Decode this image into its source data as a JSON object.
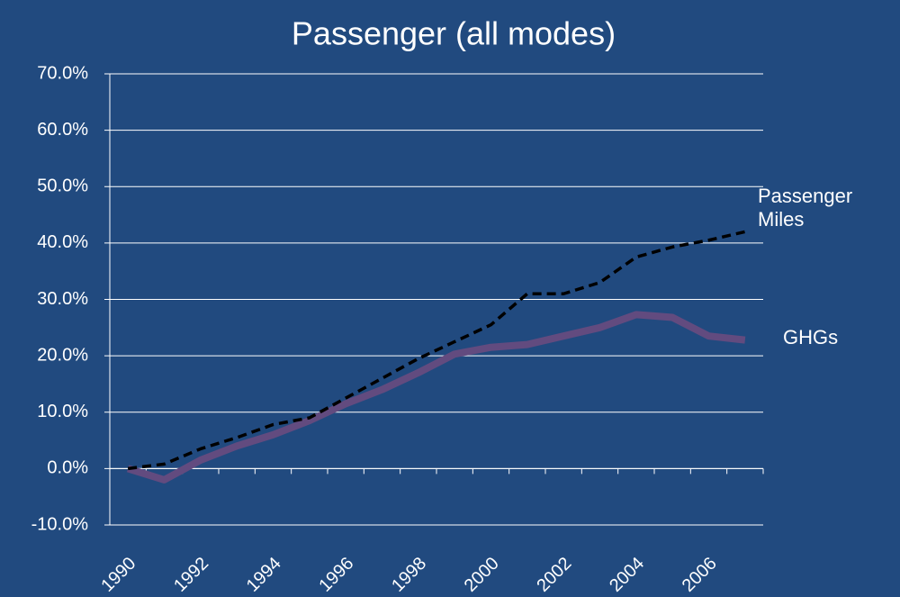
{
  "chart_data": {
    "type": "line",
    "title": "Passenger  (all modes)",
    "categories": [
      "1990",
      null,
      "1992",
      null,
      "1994",
      null,
      "1996",
      null,
      "1998",
      null,
      "2000",
      null,
      "2002",
      null,
      "2004",
      null,
      "2006",
      null
    ],
    "series": [
      {
        "name": "Passenger Miles",
        "color": "#000000",
        "dashed": true,
        "line_width": 3.5,
        "values": [
          0,
          0.8,
          3.5,
          5.5,
          7.8,
          9,
          12.5,
          16,
          19.5,
          22.5,
          25.5,
          31,
          31,
          33,
          37.5,
          39.3,
          40.5,
          42
        ]
      },
      {
        "name": "GHGs",
        "color": "#624b7f",
        "dashed": false,
        "line_width": 8,
        "values": [
          0,
          -2,
          1.5,
          4,
          6,
          8.5,
          11.5,
          14,
          17,
          20.3,
          21.5,
          22,
          23.5,
          25,
          27.3,
          26.8,
          23.5,
          22.8
        ]
      }
    ],
    "ylim": [
      -10,
      70
    ],
    "yticks": [
      {
        "value": -10,
        "label": "-10.0%"
      },
      {
        "value": 0,
        "label": "0.0%"
      },
      {
        "value": 10,
        "label": "10.0%"
      },
      {
        "value": 20,
        "label": "20.0%"
      },
      {
        "value": 30,
        "label": "30.0%"
      },
      {
        "value": 40,
        "label": "40.0%"
      },
      {
        "value": 50,
        "label": "50.0%"
      },
      {
        "value": 60,
        "label": "60.0%"
      },
      {
        "value": 70,
        "label": "70.0%"
      }
    ],
    "grid": true
  }
}
